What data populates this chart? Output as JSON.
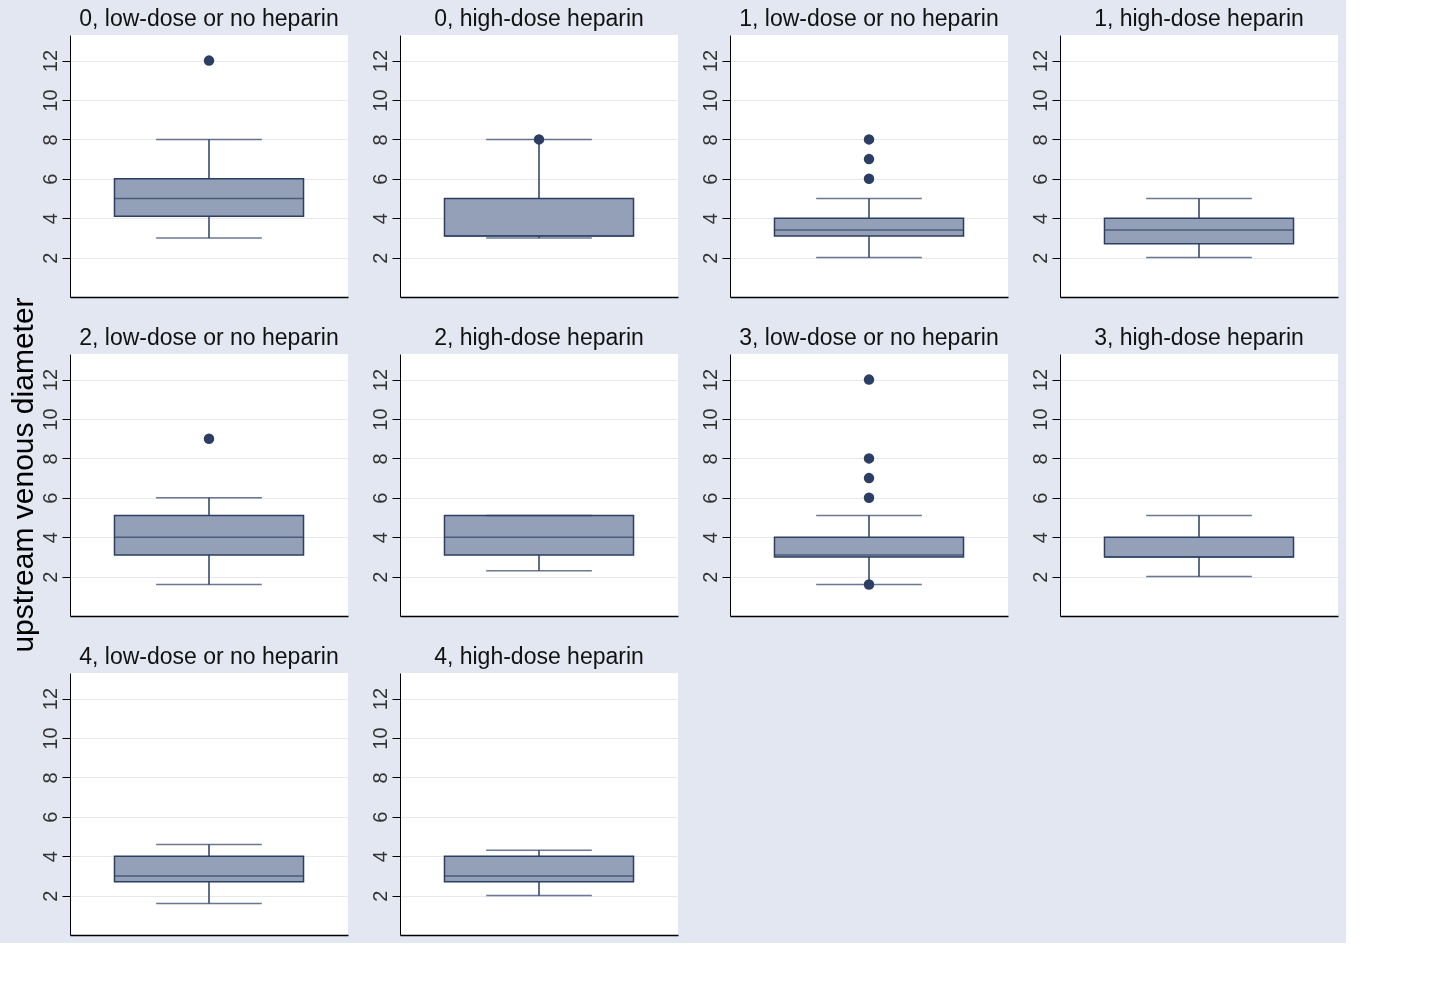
{
  "chart_data": [
    {
      "type": "box",
      "title": "0, low-dose or no heparin",
      "ylabel": "upstream venous diameter",
      "categories": [
        null
      ],
      "ylim": [
        0,
        13.3
      ],
      "yticks": [
        2,
        4,
        6,
        8,
        10,
        12
      ],
      "grid": "y",
      "tick_labels": "y",
      "color": "#949fb8",
      "boxes": [
        {
          "low": 3,
          "q1": 4.1,
          "median": 5,
          "q3": 6,
          "high": 8,
          "outliers": [
            12
          ]
        }
      ]
    },
    {
      "type": "box",
      "title": "0, high-dose heparin",
      "categories": [
        null
      ],
      "ylim": [
        0,
        13.3
      ],
      "yticks": [
        2,
        4,
        6,
        8,
        10,
        12
      ],
      "grid": "y",
      "tick_labels": "y",
      "color": "#949fb8",
      "boxes": [
        {
          "low": 3,
          "q1": 3.1,
          "median": 3.1,
          "q3": 5,
          "high": 8,
          "outliers": [
            8
          ]
        }
      ]
    },
    {
      "type": "box",
      "title": "1, low-dose or no heparin",
      "categories": [
        null
      ],
      "ylim": [
        0,
        13.3
      ],
      "yticks": [
        2,
        4,
        6,
        8,
        10,
        12
      ],
      "grid": "y",
      "tick_labels": "y",
      "color": "#949fb8",
      "boxes": [
        {
          "low": 2,
          "q1": 3.1,
          "median": 3.4,
          "q3": 4,
          "high": 5,
          "outliers": [
            6,
            7,
            8
          ]
        }
      ]
    },
    {
      "type": "box",
      "title": "1, high-dose heparin",
      "categories": [
        null
      ],
      "ylim": [
        0,
        13.3
      ],
      "yticks": [
        2,
        4,
        6,
        8,
        10,
        12
      ],
      "grid": "y",
      "tick_labels": "y",
      "color": "#949fb8",
      "boxes": [
        {
          "low": 2,
          "q1": 2.7,
          "median": 3.4,
          "q3": 4,
          "high": 5
        }
      ]
    },
    {
      "type": "box",
      "title": "2, low-dose or no heparin",
      "categories": [
        null
      ],
      "ylim": [
        0,
        13.3
      ],
      "yticks": [
        2,
        4,
        6,
        8,
        10,
        12
      ],
      "grid": "y",
      "tick_labels": "y",
      "color": "#949fb8",
      "boxes": [
        {
          "low": 1.6,
          "q1": 3.1,
          "median": 4,
          "q3": 5.1,
          "high": 6,
          "outliers": [
            9
          ]
        }
      ]
    },
    {
      "type": "box",
      "title": "2, high-dose heparin",
      "categories": [
        null
      ],
      "ylim": [
        0,
        13.3
      ],
      "yticks": [
        2,
        4,
        6,
        8,
        10,
        12
      ],
      "grid": "y",
      "tick_labels": "y",
      "color": "#949fb8",
      "boxes": [
        {
          "low": 2.3,
          "q1": 3.1,
          "median": 4,
          "q3": 5.1,
          "high": 5.1
        }
      ]
    },
    {
      "type": "box",
      "title": "3, low-dose or no heparin",
      "categories": [
        null
      ],
      "ylim": [
        0,
        13.3
      ],
      "yticks": [
        2,
        4,
        6,
        8,
        10,
        12
      ],
      "grid": "y",
      "tick_labels": "y",
      "color": "#949fb8",
      "boxes": [
        {
          "low": 1.6,
          "q1": 3,
          "median": 3.1,
          "q3": 4,
          "high": 5.1,
          "outliers": [
            1.6,
            6,
            7,
            8,
            12
          ]
        }
      ]
    },
    {
      "type": "box",
      "title": "3, high-dose heparin",
      "categories": [
        null
      ],
      "ylim": [
        0,
        13.3
      ],
      "yticks": [
        2,
        4,
        6,
        8,
        10,
        12
      ],
      "grid": "y",
      "tick_labels": "y",
      "color": "#949fb8",
      "boxes": [
        {
          "low": 2,
          "q1": 3,
          "median": 3,
          "q3": 4,
          "high": 5.1
        }
      ]
    },
    {
      "type": "box",
      "title": "4, low-dose or no heparin",
      "categories": [
        null
      ],
      "ylim": [
        0,
        13.3
      ],
      "yticks": [
        2,
        4,
        6,
        8,
        10,
        12
      ],
      "grid": "y",
      "tick_labels": "y",
      "color": "#949fb8",
      "boxes": [
        {
          "low": 1.6,
          "q1": 2.7,
          "median": 3,
          "q3": 4,
          "high": 4.6
        }
      ]
    },
    {
      "type": "box",
      "title": "4, high-dose heparin",
      "categories": [
        null
      ],
      "ylim": [
        0,
        13.3
      ],
      "yticks": [
        2,
        4,
        6,
        8,
        10,
        12
      ],
      "grid": "y",
      "tick_labels": "y",
      "color": "#949fb8",
      "boxes": [
        {
          "low": 2,
          "q1": 2.7,
          "median": 3,
          "q3": 4,
          "high": 4.3
        }
      ]
    }
  ]
}
